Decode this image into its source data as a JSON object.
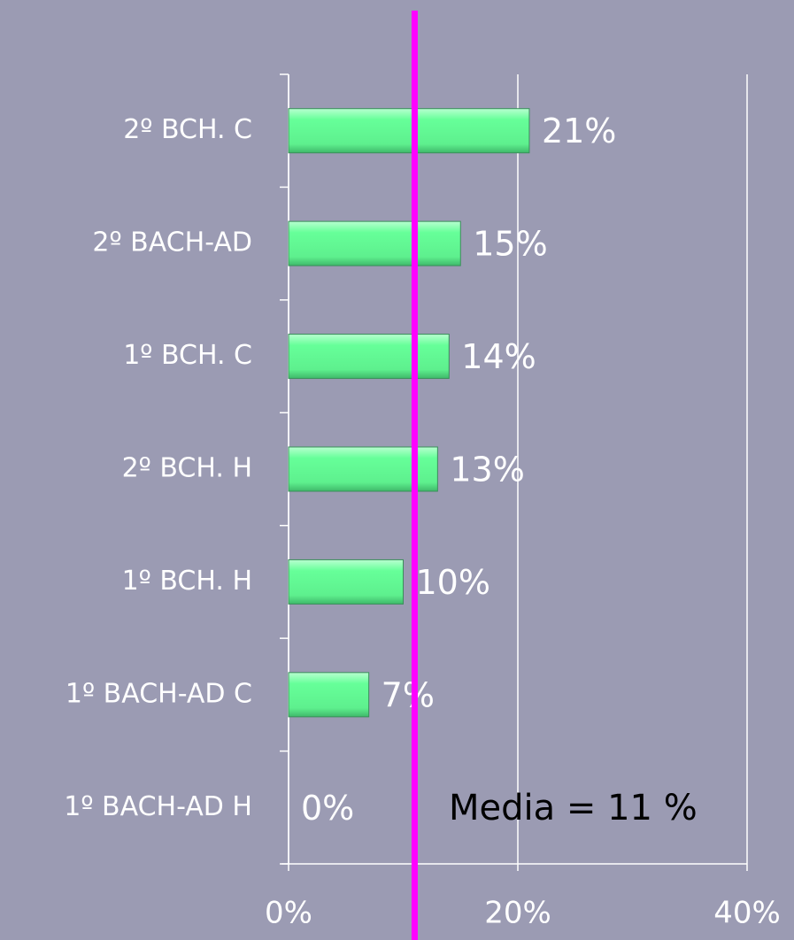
{
  "chart_data": {
    "type": "bar",
    "orientation": "horizontal",
    "categories": [
      "2º BCH. C",
      "2º BACH-AD",
      "1º BCH. C",
      "2º BCH. H",
      "1º BCH. H",
      "1º BACH-AD C",
      "1º BACH-AD H"
    ],
    "values": [
      21,
      15,
      14,
      13,
      10,
      7,
      0
    ],
    "value_labels": [
      "21%",
      "15%",
      "14%",
      "13%",
      "10%",
      "7%",
      "0%"
    ],
    "color": "#66ff99",
    "xlim": [
      0,
      40
    ],
    "xticks": [
      {
        "value": 0,
        "label": "0%"
      },
      {
        "value": 20,
        "label": "20%"
      },
      {
        "value": 40,
        "label": "40%"
      }
    ],
    "grid": true,
    "reference_line": {
      "value": 11,
      "label": "Media = 11 %",
      "color": "#ff00ff"
    }
  }
}
